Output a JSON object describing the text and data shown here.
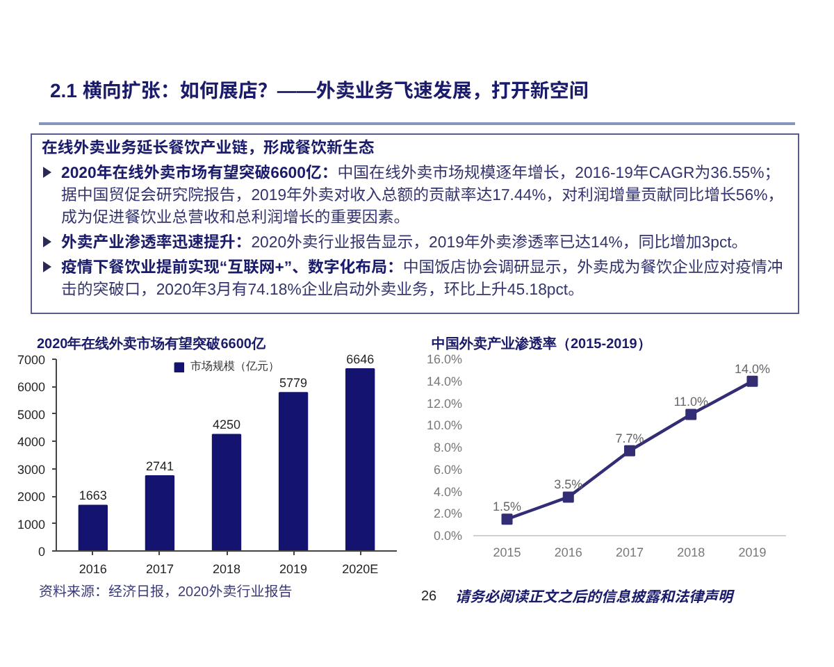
{
  "chart_data": [
    {
      "type": "other",
      "title": "2.1 横向扩张：如何展店？——外卖业务飞速发展，打开新空间",
      "subtitle": "在线外卖业务延长餐饮产业链，形成餐饮新生态",
      "annotations": [
        "2020年在线外卖市场有望突破6600亿：中国在线外卖市场规模逐年增长，2016-19年CAGR为36.55%；据中国贸促会研究院报告，2019年外卖对收入总额的贡献率达17.44%，对利润增量贡献同比增长56%，成为促进餐饮业总营收和总利润增长的重要因素。",
        "外卖产业渗透率迅速提升：2020外卖行业报告显示，2019年外卖渗透率已达14%，同比增加3pct。",
        "疫情下餐饮业提前实现“互联网+”、数字化布局：中国饭店协会调研显示，外卖成为餐饮企业应对疫情冲击的突破口，2020年3月有74.18%企业启动外卖业务，环比上升45.18pct。"
      ]
    },
    {
      "type": "bar",
      "title": "2020年在线外卖市场有望突破6600亿",
      "categories": [
        "2016",
        "2017",
        "2018",
        "2019",
        "2020E"
      ],
      "series": [
        {
          "name": "市场规模（亿元）",
          "color": "#141470",
          "values": [
            1663,
            2741,
            4250,
            5779,
            6646
          ]
        }
      ],
      "ylim": [
        0,
        7000
      ],
      "yticks": [
        0,
        1000,
        2000,
        3000,
        4000,
        5000,
        6000,
        7000
      ],
      "data_labels": true,
      "legend": "top",
      "annotations": [
        "资料来源：经济日报，2020外卖行业报告"
      ]
    },
    {
      "type": "line",
      "title": "中国外卖产业渗透率（2015-2019）",
      "categories": [
        "2015",
        "2016",
        "2017",
        "2018",
        "2019"
      ],
      "values": [
        1.5,
        3.5,
        7.7,
        11.0,
        14.0
      ],
      "color": "#322d74",
      "value_labels": [
        "1.5%",
        "3.5%",
        "7.7%",
        "11.0%",
        "14.0%"
      ],
      "ylim": [
        0,
        16
      ],
      "yticks": [
        {
          "value": 0,
          "label": "0.0%"
        },
        {
          "value": 2,
          "label": "2.0%"
        },
        {
          "value": 4,
          "label": "4.0%"
        },
        {
          "value": 6,
          "label": "6.0%"
        },
        {
          "value": 8,
          "label": "8.0%"
        },
        {
          "value": 10,
          "label": "10.0%"
        },
        {
          "value": 12,
          "label": "12.0%"
        },
        {
          "value": 14,
          "label": "14.0%"
        },
        {
          "value": 16,
          "label": "16.0%"
        }
      ],
      "marker": "square"
    },
    {
      "type": "other",
      "annotations": [
        "26",
        "请务必阅读正文之后的信息披露和法律声明"
      ]
    }
  ]
}
